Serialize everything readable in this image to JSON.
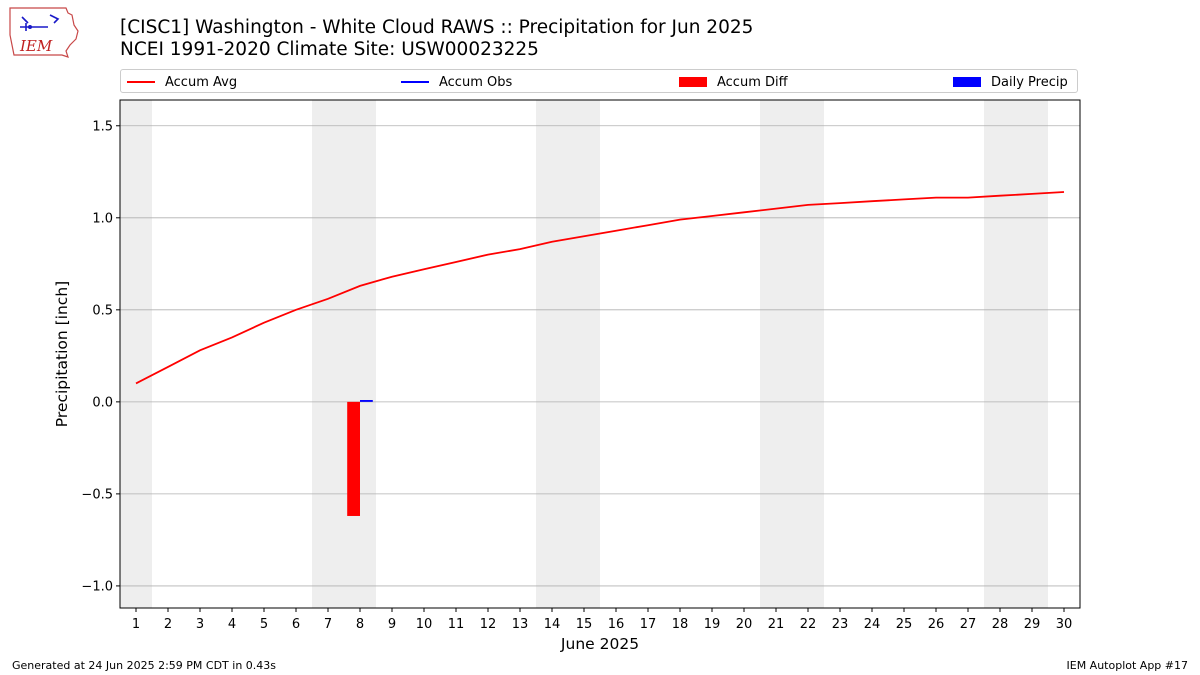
{
  "logo_text": "IEM",
  "title_line1": "[CISC1] Washington - White Cloud RAWS :: Precipitation for Jun 2025",
  "title_line2": "NCEI 1991-2020 Climate Site: USW00023225",
  "footer_left": "Generated at 24 Jun 2025 2:59 PM CDT in 0.43s",
  "footer_right": "IEM Autoplot App #17",
  "colors": {
    "avg": "#ff0000",
    "obs": "#0000ff",
    "diff": "#ff0000",
    "daily": "#0000ff",
    "weekend": "#eeeeee",
    "grid": "#b0b0b0"
  },
  "legend": [
    {
      "label": "Accum Avg",
      "kind": "line",
      "color": "#ff0000"
    },
    {
      "label": "Accum Obs",
      "kind": "line",
      "color": "#0000ff"
    },
    {
      "label": "Accum Diff",
      "kind": "patch",
      "color": "#ff0000"
    },
    {
      "label": "Daily Precip",
      "kind": "patch",
      "color": "#0000ff"
    }
  ],
  "chart_data": {
    "type": "line",
    "xlabel": "June 2025",
    "ylabel": "Precipitation [inch]",
    "xlim": [
      0.5,
      30.5
    ],
    "ylim": [
      -1.12,
      1.64
    ],
    "xticks": [
      1,
      2,
      3,
      4,
      5,
      6,
      7,
      8,
      9,
      10,
      11,
      12,
      13,
      14,
      15,
      16,
      17,
      18,
      19,
      20,
      21,
      22,
      23,
      24,
      25,
      26,
      27,
      28,
      29,
      30
    ],
    "yticks": [
      -1.0,
      -0.5,
      0.0,
      0.5,
      1.0,
      1.5
    ],
    "ytick_labels": [
      "−1.0",
      "−0.5",
      "0.0",
      "0.5",
      "1.0",
      "1.5"
    ],
    "grid": "horizontal",
    "legend_position": "top",
    "weekend_shading": [
      [
        0.5,
        1.5
      ],
      [
        6.5,
        8.5
      ],
      [
        13.5,
        15.5
      ],
      [
        20.5,
        22.5
      ],
      [
        27.5,
        29.5
      ]
    ],
    "accum_avg": {
      "name": "Accum Avg",
      "x": [
        1,
        2,
        3,
        4,
        5,
        6,
        7,
        8,
        9,
        10,
        11,
        12,
        13,
        14,
        15,
        16,
        17,
        18,
        19,
        20,
        21,
        22,
        23,
        24,
        25,
        26,
        27,
        28,
        29,
        30
      ],
      "values": [
        0.1,
        0.19,
        0.28,
        0.35,
        0.43,
        0.5,
        0.56,
        0.63,
        0.68,
        0.72,
        0.76,
        0.8,
        0.83,
        0.87,
        0.9,
        0.93,
        0.96,
        0.99,
        1.01,
        1.03,
        1.05,
        1.07,
        1.08,
        1.09,
        1.1,
        1.11,
        1.11,
        1.12,
        1.13,
        1.14
      ]
    },
    "accum_obs": {
      "name": "Accum Obs",
      "x": [],
      "values": []
    },
    "accum_diff": {
      "name": "Accum Diff",
      "x": [
        8
      ],
      "values": [
        -0.62
      ]
    },
    "daily_precip": {
      "name": "Daily Precip",
      "x": [
        8
      ],
      "values": [
        0.01
      ]
    }
  }
}
